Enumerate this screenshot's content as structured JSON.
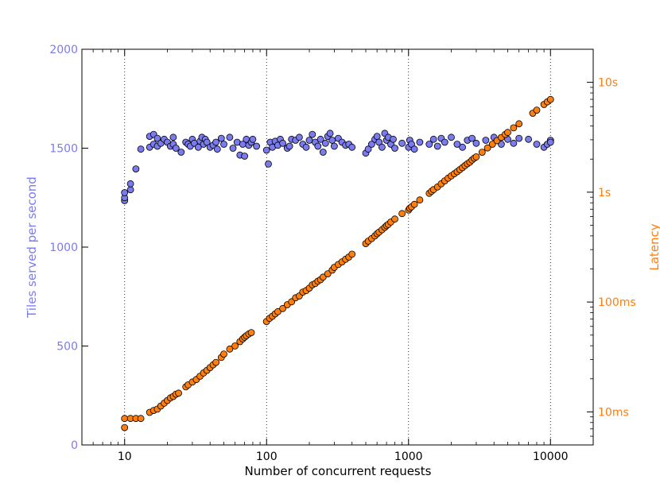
{
  "chart_data": {
    "type": "scatter",
    "title": "",
    "xlabel": "Number of concurrent requests",
    "x_scale": "log",
    "xlim": [
      5,
      20000
    ],
    "x_ticks": [
      10,
      100,
      1000,
      10000
    ],
    "x_tick_labels": [
      "10",
      "100",
      "1000",
      "10000"
    ],
    "grid": "vertical dotted lines at major x ticks",
    "colors": {
      "tiles": "#7b7bf0",
      "latency": "#ff7f0e",
      "tiles_axis": "#7b7bf0",
      "latency_axis": "#ff7f0e"
    },
    "left_axis": {
      "label": "Tiles served per second",
      "ylim": [
        0,
        2000
      ],
      "ticks": [
        0,
        500,
        1000,
        1500,
        2000
      ],
      "tick_labels": [
        "0",
        "500",
        "1000",
        "1500",
        "2000"
      ]
    },
    "right_axis": {
      "label": "Latency",
      "scale": "log",
      "unit": "seconds",
      "ylim": [
        0.005,
        20
      ],
      "ticks": [
        0.01,
        0.1,
        1,
        10
      ],
      "tick_labels": [
        "10ms",
        "100ms",
        "1s",
        "10s"
      ]
    },
    "series": [
      {
        "axis": "left",
        "marker": "circle",
        "color": "#7b7bf0",
        "x": [
          10,
          10,
          10,
          11,
          11,
          12,
          13,
          15,
          15,
          16,
          16,
          17,
          17,
          18,
          19,
          20,
          21,
          22,
          22,
          23,
          25,
          27,
          28,
          29,
          30,
          31,
          33,
          34,
          35,
          36,
          37,
          38,
          40,
          42,
          44,
          45,
          48,
          50,
          55,
          58,
          62,
          65,
          68,
          70,
          72,
          75,
          78,
          80,
          85,
          100,
          103,
          106,
          110,
          115,
          120,
          125,
          130,
          140,
          145,
          150,
          160,
          170,
          180,
          190,
          200,
          210,
          220,
          230,
          240,
          250,
          260,
          270,
          280,
          290,
          300,
          320,
          340,
          360,
          380,
          400,
          500,
          520,
          550,
          580,
          600,
          620,
          650,
          680,
          700,
          720,
          750,
          780,
          800,
          900,
          1000,
          1020,
          1050,
          1100,
          1200,
          1400,
          1500,
          1600,
          1700,
          1800,
          2000,
          2200,
          2400,
          2600,
          2800,
          3000,
          3500,
          4000,
          4500,
          5000,
          5500,
          6000,
          7000,
          8000,
          9000,
          9500,
          10000,
          10000
        ],
        "y": [
          1235,
          1250,
          1275,
          1290,
          1320,
          1395,
          1495,
          1505,
          1560,
          1570,
          1520,
          1550,
          1510,
          1525,
          1545,
          1530,
          1510,
          1555,
          1520,
          1500,
          1480,
          1530,
          1520,
          1510,
          1545,
          1525,
          1505,
          1535,
          1555,
          1520,
          1545,
          1530,
          1505,
          1515,
          1530,
          1495,
          1550,
          1520,
          1555,
          1500,
          1530,
          1465,
          1520,
          1460,
          1545,
          1515,
          1530,
          1545,
          1510,
          1490,
          1420,
          1530,
          1505,
          1535,
          1515,
          1545,
          1525,
          1500,
          1510,
          1545,
          1540,
          1555,
          1520,
          1505,
          1540,
          1570,
          1530,
          1510,
          1545,
          1480,
          1525,
          1560,
          1575,
          1540,
          1510,
          1550,
          1530,
          1515,
          1520,
          1505,
          1475,
          1495,
          1520,
          1545,
          1560,
          1530,
          1505,
          1575,
          1540,
          1555,
          1520,
          1545,
          1500,
          1525,
          1505,
          1540,
          1520,
          1495,
          1530,
          1520,
          1545,
          1510,
          1550,
          1530,
          1555,
          1520,
          1505,
          1540,
          1550,
          1525,
          1540,
          1555,
          1520,
          1545,
          1525,
          1550,
          1545,
          1520,
          1505,
          1520,
          1540,
          1530
        ]
      },
      {
        "axis": "right",
        "marker": "circle",
        "color": "#ff7f0e",
        "x": [
          10,
          10,
          11,
          12,
          13,
          15,
          16,
          17,
          18,
          19,
          20,
          21,
          22,
          23,
          24,
          27,
          28,
          30,
          32,
          34,
          36,
          38,
          40,
          42,
          44,
          48,
          50,
          55,
          60,
          65,
          68,
          70,
          72,
          75,
          78,
          100,
          105,
          110,
          115,
          120,
          130,
          140,
          150,
          160,
          170,
          180,
          190,
          200,
          210,
          220,
          230,
          240,
          250,
          270,
          290,
          300,
          320,
          340,
          360,
          380,
          400,
          500,
          520,
          550,
          580,
          600,
          620,
          650,
          680,
          700,
          720,
          750,
          800,
          900,
          1000,
          1020,
          1050,
          1100,
          1200,
          1400,
          1450,
          1500,
          1600,
          1700,
          1800,
          1900,
          2000,
          2100,
          2200,
          2300,
          2400,
          2500,
          2600,
          2700,
          2800,
          2900,
          3000,
          3300,
          3600,
          3900,
          4200,
          4500,
          4800,
          5000,
          5500,
          6000,
          7500,
          8000,
          9000,
          9500,
          10000
        ],
        "y": [
          0.0072,
          0.0087,
          0.0087,
          0.0087,
          0.0087,
          0.0099,
          0.0103,
          0.0106,
          0.0113,
          0.012,
          0.0127,
          0.0134,
          0.0138,
          0.0145,
          0.0148,
          0.0169,
          0.0176,
          0.0187,
          0.0197,
          0.0211,
          0.0226,
          0.0239,
          0.0253,
          0.0268,
          0.0282,
          0.0313,
          0.0336,
          0.0373,
          0.0398,
          0.0436,
          0.0462,
          0.0478,
          0.0494,
          0.0512,
          0.0527,
          0.0665,
          0.0711,
          0.0743,
          0.0781,
          0.0816,
          0.0873,
          0.0946,
          0.1005,
          0.1092,
          0.1136,
          0.1232,
          0.1271,
          0.1338,
          0.1434,
          0.1474,
          0.1547,
          0.1597,
          0.1686,
          0.1806,
          0.1951,
          0.2069,
          0.2195,
          0.2321,
          0.2451,
          0.2567,
          0.2728,
          0.3401,
          0.3581,
          0.3778,
          0.4001,
          0.4192,
          0.4324,
          0.4544,
          0.4784,
          0.4954,
          0.5088,
          0.5355,
          0.5694,
          0.6385,
          0.6877,
          0.7141,
          0.7354,
          0.7741,
          0.8496,
          0.9759,
          1.0187,
          1.0545,
          1.1155,
          1.1932,
          1.2693,
          1.3394,
          1.4073,
          1.4722,
          1.5366,
          1.6037,
          1.6732,
          1.7458,
          1.8157,
          1.8745,
          1.9609,
          2.0375,
          2.0983,
          2.3092,
          2.5267,
          2.7346,
          2.9483,
          3.1476,
          3.3541,
          3.4996,
          3.8529,
          4.1946,
          5.2368,
          5.5871,
          6.2832,
          6.6384,
          6.9751
        ]
      }
    ]
  }
}
